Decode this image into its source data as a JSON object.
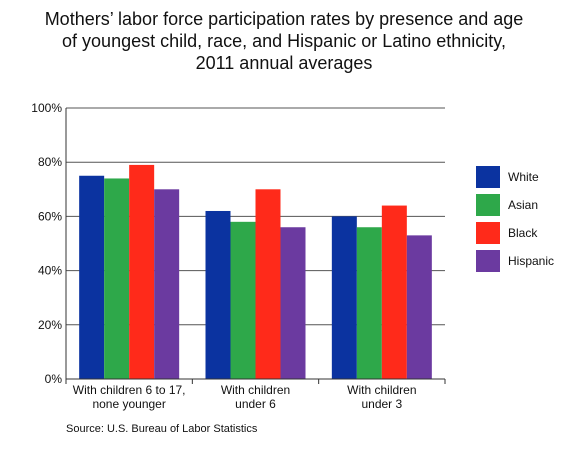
{
  "chart_data": {
    "type": "bar",
    "title_lines": [
      "Mothers’ labor force participation rates by presence and age",
      "of youngest child, race, and Hispanic or Latino ethnicity,",
      "2011 annual averages"
    ],
    "categories": [
      [
        "With children 6 to 17,",
        "none younger"
      ],
      [
        "With children",
        "under 6"
      ],
      [
        "With children",
        "under 3"
      ]
    ],
    "series": [
      {
        "name": "White",
        "color": "#0b33a0",
        "values": [
          75,
          62,
          60
        ]
      },
      {
        "name": "Asian",
        "color": "#2ea84a",
        "values": [
          74,
          58,
          56
        ]
      },
      {
        "name": "Black",
        "color": "#ff2a1a",
        "values": [
          79,
          70,
          64
        ]
      },
      {
        "name": "Hispanic",
        "color": "#6b3aa0",
        "values": [
          70,
          56,
          53
        ]
      }
    ],
    "ylim": [
      0,
      100
    ],
    "y_ticks": [
      {
        "value": 0,
        "label": "0%"
      },
      {
        "value": 20,
        "label": "20%"
      },
      {
        "value": 40,
        "label": "40%"
      },
      {
        "value": 60,
        "label": "60%"
      },
      {
        "value": 80,
        "label": "80%"
      },
      {
        "value": 100,
        "label": "100%"
      }
    ],
    "xlabel": "",
    "ylabel": "",
    "grid": true,
    "legend_position": "right",
    "source": "Source: U.S. Bureau of Labor Statistics"
  }
}
